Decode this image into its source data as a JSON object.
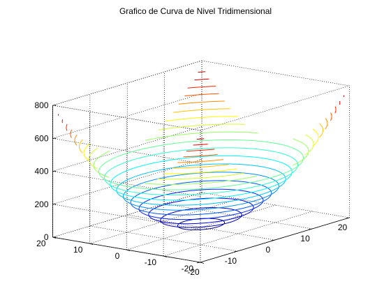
{
  "chart_data": {
    "type": "contour3",
    "title": "Grafico de Curva de Nivel Tridimensional",
    "function": "z = x^2 + y^2",
    "xlim": [
      -20,
      20
    ],
    "ylim": [
      -20,
      20
    ],
    "zlim": [
      0,
      800
    ],
    "x_ticks": [
      -20,
      -10,
      0,
      10,
      20
    ],
    "y_ticks": [
      -20,
      -10,
      0,
      10,
      20
    ],
    "z_ticks": [
      0,
      200,
      400,
      600,
      800
    ],
    "x_tick_labels": [
      "-20",
      "-10",
      "0",
      "10",
      "20"
    ],
    "y_tick_labels": [
      "-20",
      "-10",
      "0",
      "10",
      "20"
    ],
    "z_tick_labels": [
      "0",
      "200",
      "400",
      "600",
      "800"
    ],
    "level_min": 20,
    "level_max": 780,
    "level_step": 40,
    "colormap": "jet",
    "grid": true,
    "box": true
  }
}
